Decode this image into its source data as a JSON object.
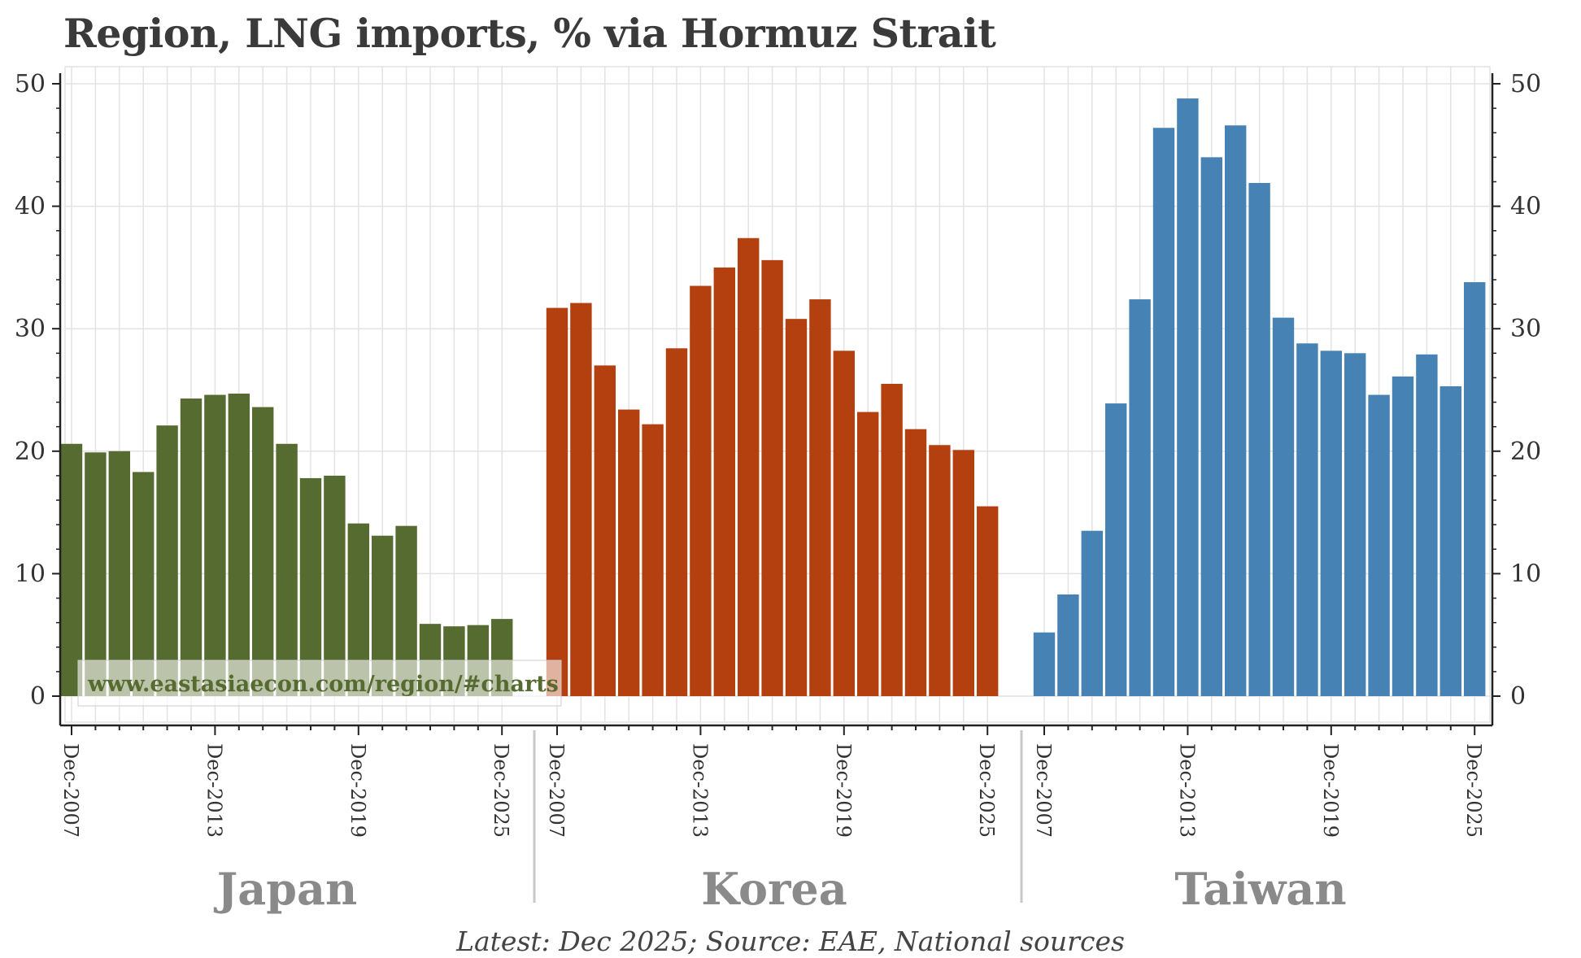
{
  "title": "Region, LNG imports, % via Hormuz Strait",
  "footer": "Latest: Dec 2025; Source: EAE, National sources",
  "watermark": "www.eastasiaecon.com/region/#charts",
  "colors": {
    "japan": "#556b2f",
    "korea": "#b5400f",
    "taiwan": "#4682b4",
    "grid": "#e3e3e3",
    "axis": "#222222",
    "watermark_text": "#556b2f"
  },
  "chart_data": {
    "type": "bar",
    "layout": "small-multiples",
    "title": "Region, LNG imports, % via Hormuz Strait",
    "categories": [
      "Dec-2007",
      "Dec-2008",
      "Dec-2009",
      "Dec-2010",
      "Dec-2011",
      "Dec-2012",
      "Dec-2013",
      "Dec-2014",
      "Dec-2015",
      "Dec-2016",
      "Dec-2017",
      "Dec-2018",
      "Dec-2019",
      "Dec-2020",
      "Dec-2021",
      "Dec-2022",
      "Dec-2023",
      "Dec-2024",
      "Dec-2025"
    ],
    "x_tick_labels": [
      "Dec-2007",
      "Dec-2013",
      "Dec-2019",
      "Dec-2025"
    ],
    "ylim": [
      0,
      50
    ],
    "y_ticks": [
      "0",
      "10",
      "20",
      "30",
      "40",
      "50"
    ],
    "xlabel": "",
    "ylabel": "",
    "series": [
      {
        "name": "Japan",
        "values": [
          20.6,
          19.9,
          20.0,
          18.3,
          22.1,
          24.3,
          24.6,
          24.7,
          23.6,
          20.6,
          17.8,
          18.0,
          14.1,
          13.1,
          13.9,
          5.9,
          5.7,
          5.8,
          6.3
        ]
      },
      {
        "name": "Korea",
        "values": [
          31.7,
          32.1,
          27.0,
          23.4,
          22.2,
          28.4,
          33.5,
          35.0,
          37.4,
          35.6,
          30.8,
          32.4,
          28.2,
          23.2,
          25.5,
          21.8,
          20.5,
          20.1,
          15.5
        ]
      },
      {
        "name": "Taiwan",
        "values": [
          5.2,
          8.3,
          13.5,
          23.9,
          32.4,
          46.4,
          48.8,
          44.0,
          46.6,
          41.9,
          30.9,
          28.8,
          28.2,
          28.0,
          24.6,
          26.1,
          27.9,
          25.3,
          33.8
        ]
      }
    ]
  }
}
